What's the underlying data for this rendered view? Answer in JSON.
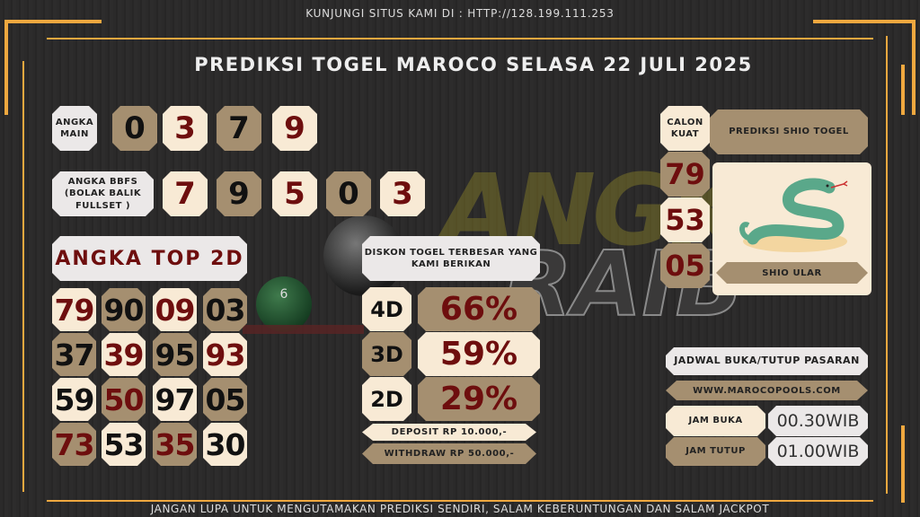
{
  "header": {
    "visit_text": "KUNJUNGI SITUS KAMI DI : HTTP://128.199.111.253",
    "title": "PREDIKSI TOGEL MAROCO SELASA 22 JULI 2025"
  },
  "watermark": {
    "line1": "ANGKA",
    "line2": "RAIB"
  },
  "angka_main": {
    "label": "ANGKA MAIN",
    "digits": [
      "0",
      "3",
      "7",
      "9"
    ]
  },
  "angka_bbfs": {
    "label": "ANGKA BBFS (BOLAK BALIK FULLSET )",
    "digits": [
      "7",
      "9",
      "5",
      "0",
      "3"
    ]
  },
  "top2d": {
    "title": "ANGKA TOP 2D",
    "rows": [
      [
        "79",
        "90",
        "09",
        "03"
      ],
      [
        "37",
        "39",
        "95",
        "93"
      ],
      [
        "59",
        "50",
        "97",
        "05"
      ],
      [
        "73",
        "53",
        "35",
        "30"
      ]
    ]
  },
  "diskon": {
    "title": "DISKON TOGEL TERBESAR YANG KAMI BERIKAN",
    "items": [
      {
        "label": "4D",
        "value": "66%"
      },
      {
        "label": "3D",
        "value": "59%"
      },
      {
        "label": "2D",
        "value": "29%"
      }
    ],
    "deposit": "DEPOSIT RP 10.000,-",
    "withdraw": "WITHDRAW RP 50.000,-"
  },
  "shio": {
    "calon_label": "CALON KUAT",
    "title": "PREDIKSI SHIO TOGEL",
    "numbers": [
      "79",
      "53",
      "05"
    ],
    "name": "SHIO ULAR"
  },
  "jadwal": {
    "title": "JADWAL BUKA/TUTUP PASARAN",
    "website": "WWW.MAROCOPOOLS.COM",
    "buka_label": "JAM BUKA",
    "buka_value": "00.30WIB",
    "tutup_label": "JAM TUTUP",
    "tutup_value": "01.00WIB"
  },
  "footer": {
    "text": "JANGAN LUPA UNTUK MENGUTAMAKAN PREDIKSI SENDIRI, SALAM KEBERUNTUNGAN DAN SALAM JACKPOT"
  },
  "colors": {
    "accent": "#efa83f",
    "tan": "#a58f70",
    "cream": "#f8ead5",
    "dark_red": "#6e0e0e"
  }
}
